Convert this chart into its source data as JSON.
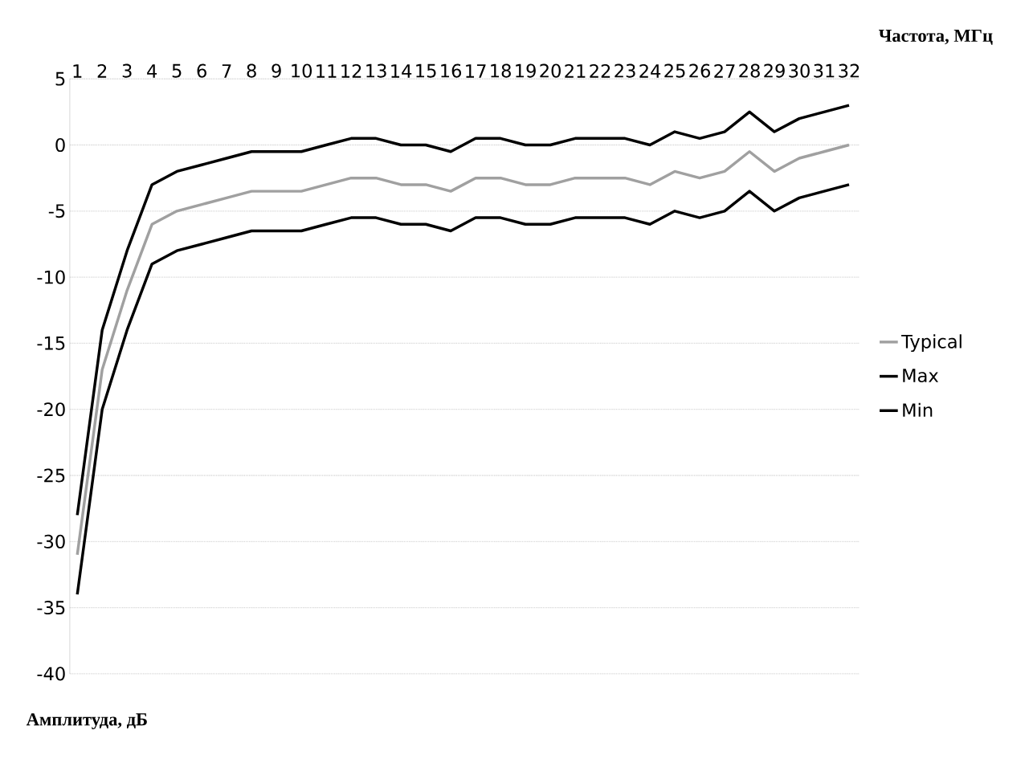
{
  "chart_data": {
    "type": "line",
    "xlabel": "Частота, МГц",
    "ylabel": "Амплитуда, дБ",
    "categories": [
      "1",
      "2",
      "3",
      "4",
      "5",
      "6",
      "7",
      "8",
      "9",
      "10",
      "11",
      "12",
      "13",
      "14",
      "15",
      "16",
      "17",
      "18",
      "19",
      "20",
      "21",
      "22",
      "23",
      "24",
      "25",
      "26",
      "27",
      "28",
      "29",
      "30",
      "31",
      "32"
    ],
    "series": [
      {
        "name": "Typical",
        "color": "#a0a0a0",
        "values": [
          -31,
          -17,
          -11,
          -6,
          -5,
          -4.5,
          -4,
          -3.5,
          -3.5,
          -3.5,
          -3,
          -2.5,
          -2.5,
          -3,
          -3,
          -3.5,
          -2.5,
          -2.5,
          -3,
          -3,
          -2.5,
          -2.5,
          -2.5,
          -3,
          -2,
          -2.5,
          -2,
          -0.5,
          -2,
          -1,
          -0.5,
          0
        ]
      },
      {
        "name": "Max",
        "color": "#000000",
        "values": [
          -28,
          -14,
          -8,
          -3,
          -2,
          -1.5,
          -1,
          -0.5,
          -0.5,
          -0.5,
          0,
          0.5,
          0.5,
          0,
          0,
          -0.5,
          0.5,
          0.5,
          0,
          0,
          0.5,
          0.5,
          0.5,
          0,
          1,
          0.5,
          1,
          2.5,
          1,
          2,
          2.5,
          3
        ]
      },
      {
        "name": "Min",
        "color": "#000000",
        "values": [
          -34,
          -20,
          -14,
          -9,
          -8,
          -7.5,
          -7,
          -6.5,
          -6.5,
          -6.5,
          -6,
          -5.5,
          -5.5,
          -6,
          -6,
          -6.5,
          -5.5,
          -5.5,
          -6,
          -6,
          -5.5,
          -5.5,
          -5.5,
          -6,
          -5,
          -5.5,
          -5,
          -3.5,
          -5,
          -4,
          -3.5,
          -3
        ]
      }
    ],
    "ylim": [
      -40,
      5
    ],
    "yticks": [
      -40,
      -35,
      -30,
      -25,
      -20,
      -15,
      -10,
      -5,
      0,
      5
    ],
    "grid": "y",
    "legend": "right",
    "marker": "none",
    "line_style": "solid"
  }
}
